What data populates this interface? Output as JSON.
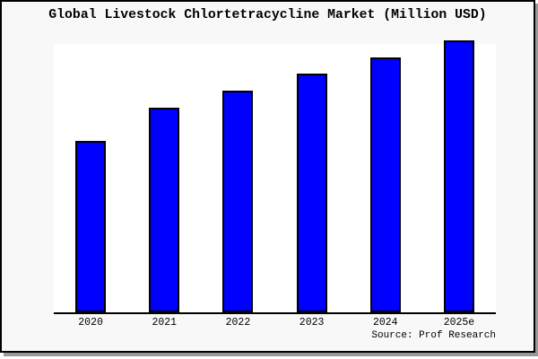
{
  "chart_data": {
    "type": "bar",
    "title": "Global Livestock Chlortetracycline Market (Million USD)",
    "categories": [
      "2020",
      "2021",
      "2022",
      "2023",
      "2024",
      "2025e"
    ],
    "values": [
      62.7,
      75.0,
      81.3,
      87.7,
      93.7,
      100.0
    ],
    "units_hint": "relative bar height, percent of tallest bar (2025e); chart shows no y-axis tick labels",
    "ylim": [
      0,
      100
    ],
    "xlabel": "",
    "ylabel": "",
    "grid": false,
    "y_axis_visible": false,
    "legend": "none",
    "source_label": "Source: Prof Research",
    "colors": {
      "bar_fill": "#0000ff",
      "bar_edge": "#000000",
      "plot_background": "#ffffff",
      "card_background": "#f8f8f8",
      "border": "#000000",
      "shadow": "#999999",
      "text": "#000000"
    }
  }
}
